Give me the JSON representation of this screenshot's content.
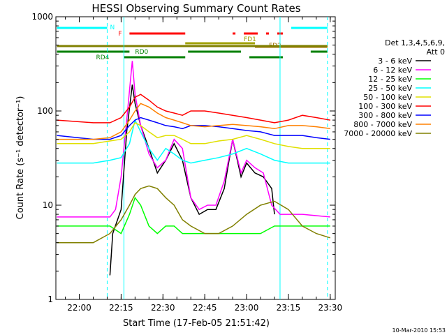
{
  "chart_data": {
    "type": "line",
    "title": "HESSI Observing Summary Count Rates",
    "xlabel": "Start Time (17-Feb-05 21:51:42)",
    "ylabel": "Count Rate (s⁻¹ detector⁻¹)",
    "y_scale": "log",
    "ylim": [
      1,
      1000
    ],
    "xlim_minutes": [
      21.86,
      23.53
    ],
    "x_ticks": [
      "22:00",
      "22:15",
      "22:30",
      "22:45",
      "23:00",
      "23:15",
      "23:30"
    ],
    "y_ticks": [
      "1",
      "10",
      "100",
      "1000"
    ],
    "grid": false,
    "legend_position": "right",
    "legend_header": [
      "Det 1,3,4,5,6,9,",
      "Att 0"
    ],
    "series": [
      {
        "name": "3 - 6 keV",
        "color": "#000000",
        "x": [
          "22:11",
          "22:12",
          "22:15",
          "22:17",
          "22:19",
          "22:20",
          "22:22",
          "22:25",
          "22:28",
          "22:31",
          "22:34",
          "22:37",
          "22:40",
          "22:43",
          "22:46",
          "22:49",
          "22:52",
          "22:55",
          "22:58",
          "23:00",
          "23:03",
          "23:06",
          "23:09",
          "23:10"
        ],
        "y": [
          1.8,
          5,
          9,
          60,
          190,
          120,
          70,
          40,
          22,
          30,
          45,
          30,
          12,
          8,
          9,
          9,
          15,
          50,
          20,
          28,
          22,
          20,
          15,
          8
        ]
      },
      {
        "name": "6 - 12 keV",
        "color": "#ff00ff",
        "x": [
          "21:52",
          "22:05",
          "22:11",
          "22:13",
          "22:15",
          "22:17",
          "22:19",
          "22:20",
          "22:22",
          "22:25",
          "22:28",
          "22:31",
          "22:34",
          "22:37",
          "22:40",
          "22:43",
          "22:46",
          "22:49",
          "22:52",
          "22:55",
          "22:58",
          "23:00",
          "23:03",
          "23:06",
          "23:09",
          "23:12",
          "23:20",
          "23:30"
        ],
        "y": [
          7.5,
          7.5,
          7.5,
          9,
          20,
          80,
          340,
          150,
          70,
          35,
          25,
          30,
          50,
          40,
          12,
          9,
          10,
          10,
          18,
          50,
          22,
          30,
          25,
          22,
          10,
          8,
          8,
          7.5
        ]
      },
      {
        "name": "12 - 25 keV",
        "color": "#00ff00",
        "x": [
          "21:52",
          "22:05",
          "22:11",
          "22:15",
          "22:18",
          "22:20",
          "22:22",
          "22:25",
          "22:28",
          "22:31",
          "22:34",
          "22:37",
          "22:40",
          "22:45",
          "22:50",
          "22:55",
          "23:00",
          "23:05",
          "23:10",
          "23:15",
          "23:20",
          "23:25",
          "23:30"
        ],
        "y": [
          6,
          6,
          6,
          5,
          8,
          12,
          10,
          6,
          5,
          6,
          6,
          5,
          5,
          5,
          5,
          5,
          5,
          5,
          6,
          6,
          6,
          6,
          6
        ]
      },
      {
        "name": "25 - 50 keV",
        "color": "#00ffff",
        "x": [
          "21:52",
          "22:05",
          "22:11",
          "22:15",
          "22:18",
          "22:20",
          "22:22",
          "22:25",
          "22:28",
          "22:31",
          "22:34",
          "22:37",
          "22:40",
          "22:45",
          "22:50",
          "22:55",
          "23:00",
          "23:05",
          "23:10",
          "23:15",
          "23:20",
          "23:25",
          "23:30"
        ],
        "y": [
          28,
          28,
          30,
          32,
          45,
          80,
          60,
          40,
          30,
          40,
          35,
          30,
          28,
          30,
          32,
          35,
          40,
          35,
          30,
          28,
          28,
          28,
          28
        ]
      },
      {
        "name": "50 - 100 keV",
        "color": "#e0e000",
        "x": [
          "21:52",
          "22:05",
          "22:11",
          "22:15",
          "22:18",
          "22:20",
          "22:22",
          "22:25",
          "22:28",
          "22:31",
          "22:34",
          "22:37",
          "22:40",
          "22:45",
          "22:50",
          "22:55",
          "23:00",
          "23:05",
          "23:10",
          "23:15",
          "23:20",
          "23:25",
          "23:30"
        ],
        "y": [
          45,
          45,
          48,
          50,
          60,
          75,
          70,
          60,
          52,
          55,
          55,
          50,
          45,
          45,
          48,
          50,
          55,
          50,
          45,
          42,
          40,
          40,
          40
        ]
      },
      {
        "name": "100 - 300 keV",
        "color": "#ff0000",
        "x": [
          "21:52",
          "22:05",
          "22:11",
          "22:15",
          "22:18",
          "22:20",
          "22:22",
          "22:25",
          "22:28",
          "22:31",
          "22:34",
          "22:37",
          "22:40",
          "22:45",
          "22:50",
          "22:55",
          "23:00",
          "23:05",
          "23:10",
          "23:15",
          "23:20",
          "23:25",
          "23:30"
        ],
        "y": [
          80,
          75,
          75,
          85,
          110,
          140,
          150,
          130,
          110,
          100,
          95,
          90,
          100,
          100,
          95,
          90,
          85,
          80,
          75,
          80,
          90,
          85,
          80
        ]
      },
      {
        "name": "300 - 800 keV",
        "color": "#0000ff",
        "x": [
          "21:52",
          "22:05",
          "22:11",
          "22:15",
          "22:18",
          "22:20",
          "22:22",
          "22:25",
          "22:28",
          "22:31",
          "22:34",
          "22:37",
          "22:40",
          "22:45",
          "22:50",
          "22:55",
          "23:00",
          "23:05",
          "23:10",
          "23:15",
          "23:20",
          "23:25",
          "23:30"
        ],
        "y": [
          55,
          50,
          50,
          55,
          70,
          80,
          85,
          80,
          75,
          70,
          68,
          65,
          70,
          70,
          68,
          65,
          62,
          60,
          55,
          55,
          55,
          52,
          50
        ]
      },
      {
        "name": "800 - 7000 keV",
        "color": "#ff8000",
        "x": [
          "21:52",
          "22:05",
          "22:11",
          "22:15",
          "22:18",
          "22:20",
          "22:22",
          "22:25",
          "22:28",
          "22:31",
          "22:34",
          "22:37",
          "22:40",
          "22:45",
          "22:50",
          "22:55",
          "23:00",
          "23:05",
          "23:10",
          "23:15",
          "23:20",
          "23:25",
          "23:30"
        ],
        "y": [
          50,
          50,
          52,
          60,
          80,
          100,
          120,
          110,
          95,
          85,
          80,
          75,
          70,
          68,
          70,
          72,
          70,
          68,
          65,
          70,
          70,
          68,
          65
        ]
      },
      {
        "name": "7000 - 20000 keV",
        "color": "#808000",
        "x": [
          "21:52",
          "22:05",
          "22:11",
          "22:15",
          "22:18",
          "22:20",
          "22:22",
          "22:25",
          "22:28",
          "22:31",
          "22:34",
          "22:37",
          "22:40",
          "22:45",
          "22:50",
          "22:55",
          "23:00",
          "23:05",
          "23:10",
          "23:15",
          "23:20",
          "23:25",
          "23:30"
        ],
        "y": [
          4,
          4,
          5,
          7,
          10,
          13,
          15,
          16,
          15,
          12,
          10,
          7,
          6,
          5,
          5,
          6,
          8,
          10,
          11,
          9,
          6,
          5,
          4.5
        ]
      }
    ],
    "flag_bars": [
      {
        "label": "N",
        "color": "#00ffff",
        "segments": [
          [
            "21:52",
            "22:10"
          ],
          [
            "23:16",
            "23:29"
          ]
        ]
      },
      {
        "label": "F",
        "color": "#ff0000",
        "segments": [
          [
            "22:18",
            "22:38"
          ],
          [
            "22:55",
            "22:56"
          ],
          [
            "22:59",
            "23:04"
          ],
          [
            "23:07",
            "23:08"
          ],
          [
            "23:11",
            "23:13"
          ]
        ]
      },
      {
        "label": "FD1",
        "color": "#a0a000",
        "segments": [
          [
            "22:38",
            "23:03"
          ]
        ]
      },
      {
        "label": "FD2",
        "color": "#a07000",
        "segments": [
          [
            "23:03",
            "23:29"
          ]
        ]
      },
      {
        "label": "RD0",
        "color": "#008000",
        "segments": [
          [
            "21:52",
            "22:18"
          ],
          [
            "22:39",
            "22:58"
          ],
          [
            "23:23",
            "23:29"
          ]
        ]
      },
      {
        "label": "RD4",
        "color": "#008000",
        "segments": [
          [
            "22:16",
            "22:38"
          ],
          [
            "23:01",
            "23:13"
          ]
        ]
      },
      {
        "label": "",
        "color": "#808000",
        "segments": [
          [
            "21:52",
            "23:29"
          ]
        ]
      }
    ],
    "footer_timestamp": "10-Mar-2010 15:53"
  }
}
